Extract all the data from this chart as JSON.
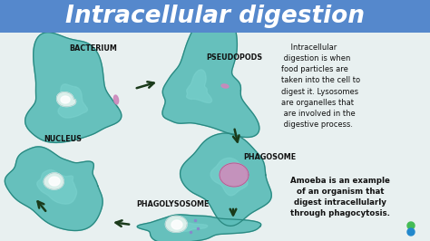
{
  "title": "Intracellular digestion",
  "title_color": "#ffffff",
  "title_bg_color": "#5588cc",
  "bg_color": "#e8f0f0",
  "label_bacterium": "BACTERIUM",
  "label_nucleus": "NUCLEUS",
  "label_pseudopods": "PSEUDOPODS",
  "label_phagosome": "PHAGOSOME",
  "label_phagolysosome": "PHAGOLYSOSOME",
  "text_definition": "    Intracellular\n digestion is when\nfood particles are\ntaken into the cell to\ndigest it. Lysosomes\nare organelles that\n are involved in the\n digestive process.",
  "text_example": "Amoeba is an example\nof an organism that\ndigest intracellularly\nthrough phagocytosis.",
  "label_color": "#111111",
  "text_color": "#111111",
  "cell_fill1": "#5bbcb8",
  "cell_fill2": "#3daaa5",
  "cell_fill3": "#7dd4d0",
  "cell_edge": "#2a8880",
  "nucleus_color": "#e8f0b0",
  "vacuole_color": "#d488bb",
  "bacterium_color": "#cc88bb",
  "arrow_color": "#1a3a1a",
  "logo_green": "#44bb55",
  "logo_blue": "#2288cc"
}
